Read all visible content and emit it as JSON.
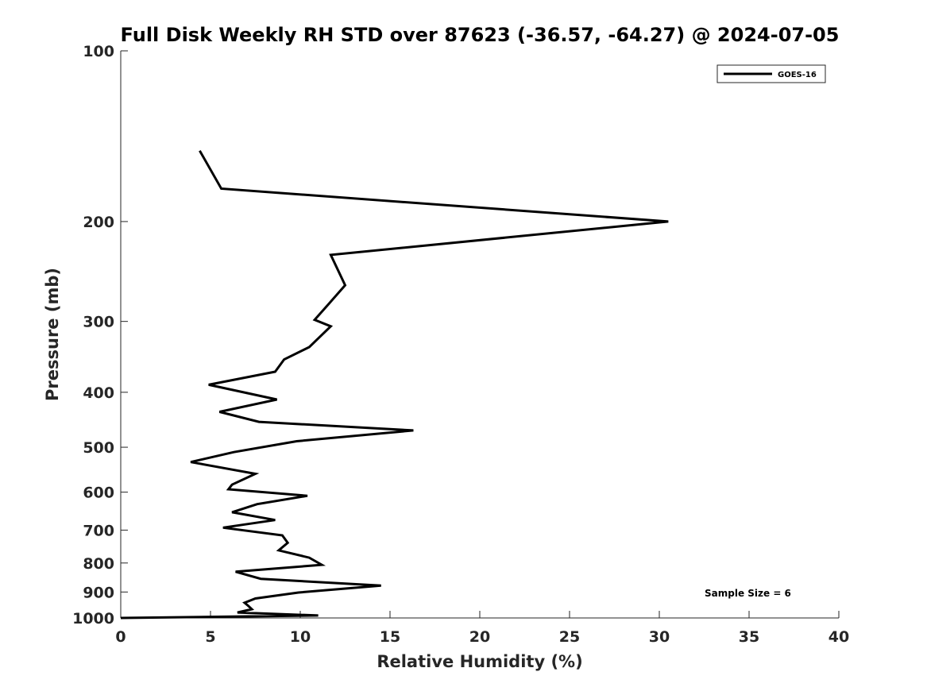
{
  "chart_data": {
    "type": "line",
    "title": "Full Disk Weekly RH STD over 87623 (-36.57, -64.27) @ 2024-07-05",
    "xlabel": "Relative Humidity (%)",
    "ylabel": "Pressure (mb)",
    "xlim": [
      0,
      40
    ],
    "ylim": [
      100,
      1000
    ],
    "yscale": "log",
    "yreversed": true,
    "grid": false,
    "x_ticks": [
      0,
      5,
      10,
      15,
      20,
      25,
      30,
      35,
      40
    ],
    "y_ticks": [
      100,
      200,
      300,
      400,
      500,
      600,
      700,
      800,
      900,
      1000
    ],
    "legend": {
      "position": "top-right",
      "entries": [
        "GOES-16"
      ]
    },
    "annotation": "Sample Size = 6",
    "series": [
      {
        "name": "GOES-16",
        "color": "#000000",
        "points": [
          [
            4.4,
            150
          ],
          [
            5.6,
            175
          ],
          [
            30.5,
            200
          ],
          [
            11.7,
            229
          ],
          [
            12.5,
            259
          ],
          [
            11.6,
            279
          ],
          [
            10.8,
            298
          ],
          [
            11.7,
            306
          ],
          [
            10.5,
            333
          ],
          [
            9.1,
            350
          ],
          [
            8.6,
            368
          ],
          [
            4.9,
            388
          ],
          [
            8.7,
            412
          ],
          [
            5.5,
            433
          ],
          [
            7.7,
            451
          ],
          [
            16.3,
            467
          ],
          [
            9.8,
            488
          ],
          [
            6.3,
            510
          ],
          [
            3.9,
            531
          ],
          [
            7.5,
            557
          ],
          [
            6.2,
            582
          ],
          [
            6.0,
            593
          ],
          [
            10.4,
            609
          ],
          [
            7.6,
            630
          ],
          [
            6.2,
            651
          ],
          [
            8.6,
            672
          ],
          [
            5.7,
            693
          ],
          [
            9.0,
            715
          ],
          [
            9.3,
            737
          ],
          [
            8.8,
            760
          ],
          [
            10.5,
            783
          ],
          [
            11.2,
            806
          ],
          [
            6.4,
            829
          ],
          [
            7.8,
            853
          ],
          [
            14.5,
            877
          ],
          [
            9.9,
            902
          ],
          [
            7.5,
            924
          ],
          [
            6.9,
            940
          ],
          [
            7.1,
            952
          ],
          [
            7.3,
            965
          ],
          [
            6.5,
            978
          ],
          [
            11.0,
            990
          ],
          [
            0.0,
            1000
          ]
        ]
      }
    ]
  }
}
